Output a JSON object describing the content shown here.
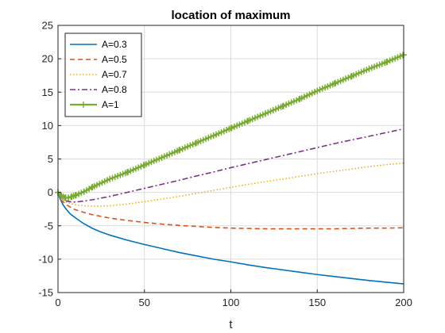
{
  "chart_data": {
    "type": "line",
    "title": "location of maximum",
    "xlabel": "t",
    "ylabel": "",
    "xlim": [
      0,
      200
    ],
    "ylim": [
      -15,
      25
    ],
    "xticks": [
      0,
      50,
      100,
      150,
      200
    ],
    "yticks": [
      -15,
      -10,
      -5,
      0,
      5,
      10,
      15,
      20,
      25
    ],
    "grid": true,
    "legend_position": "top-left",
    "series": [
      {
        "name": "A=0.3",
        "color": "#0072BD",
        "style": "solid",
        "marker": "none",
        "x": [
          0,
          1,
          2,
          3,
          5,
          7,
          10,
          15,
          20,
          25,
          30,
          40,
          50,
          60,
          70,
          80,
          90,
          100,
          110,
          120,
          130,
          140,
          150,
          160,
          170,
          180,
          190,
          200
        ],
        "y": [
          0,
          -0.8,
          -1.4,
          -1.9,
          -2.6,
          -3.2,
          -3.8,
          -4.7,
          -5.4,
          -5.95,
          -6.4,
          -7.15,
          -7.8,
          -8.4,
          -9.0,
          -9.5,
          -10.0,
          -10.4,
          -10.85,
          -11.25,
          -11.6,
          -11.95,
          -12.3,
          -12.6,
          -12.9,
          -13.2,
          -13.45,
          -13.7
        ]
      },
      {
        "name": "A=0.5",
        "color": "#D95319",
        "style": "dashed",
        "marker": "none",
        "x": [
          0,
          2,
          5,
          10,
          15,
          20,
          30,
          40,
          50,
          60,
          70,
          80,
          90,
          100,
          110,
          120,
          130,
          140,
          150,
          160,
          170,
          180,
          190,
          200
        ],
        "y": [
          0,
          -1.2,
          -1.9,
          -2.6,
          -3.0,
          -3.35,
          -3.85,
          -4.2,
          -4.5,
          -4.75,
          -4.95,
          -5.1,
          -5.25,
          -5.35,
          -5.4,
          -5.45,
          -5.45,
          -5.45,
          -5.45,
          -5.45,
          -5.4,
          -5.35,
          -5.35,
          -5.3
        ]
      },
      {
        "name": "A=0.7",
        "color": "#EDB120",
        "style": "dotted",
        "marker": "none",
        "x": [
          0,
          2,
          5,
          10,
          15,
          20,
          25,
          30,
          40,
          50,
          60,
          70,
          80,
          90,
          100,
          110,
          120,
          130,
          140,
          150,
          160,
          170,
          180,
          190,
          200
        ],
        "y": [
          0,
          -1.0,
          -1.5,
          -1.85,
          -2.0,
          -2.05,
          -2.05,
          -2.0,
          -1.75,
          -1.4,
          -1.0,
          -0.6,
          -0.15,
          0.3,
          0.75,
          1.2,
          1.6,
          2.0,
          2.4,
          2.8,
          3.15,
          3.5,
          3.85,
          4.15,
          4.4
        ]
      },
      {
        "name": "A=0.8",
        "color": "#7E2F8E",
        "style": "dashdot",
        "marker": "none",
        "x": [
          0,
          2,
          5,
          8,
          10,
          15,
          20,
          30,
          40,
          50,
          60,
          70,
          80,
          90,
          100,
          110,
          120,
          130,
          140,
          150,
          160,
          170,
          180,
          190,
          200
        ],
        "y": [
          0,
          -0.9,
          -1.3,
          -1.45,
          -1.45,
          -1.3,
          -1.1,
          -0.6,
          0.0,
          0.6,
          1.2,
          1.8,
          2.45,
          3.05,
          3.7,
          4.3,
          4.9,
          5.5,
          6.1,
          6.7,
          7.3,
          7.85,
          8.4,
          8.95,
          9.5
        ]
      },
      {
        "name": "A=1",
        "color": "#77AC30",
        "style": "solid",
        "marker": "plus",
        "x": [
          0,
          2,
          4,
          6,
          8,
          10,
          15,
          20,
          30,
          40,
          50,
          60,
          70,
          80,
          90,
          100,
          110,
          120,
          130,
          140,
          150,
          160,
          170,
          180,
          190,
          200
        ],
        "y": [
          0,
          -0.5,
          -0.8,
          -0.8,
          -0.65,
          -0.45,
          0.1,
          0.8,
          2.0,
          3.0,
          4.1,
          5.2,
          6.3,
          7.4,
          8.5,
          9.6,
          10.7,
          11.8,
          12.9,
          14.0,
          15.2,
          16.3,
          17.4,
          18.5,
          19.5,
          20.6
        ]
      }
    ]
  }
}
